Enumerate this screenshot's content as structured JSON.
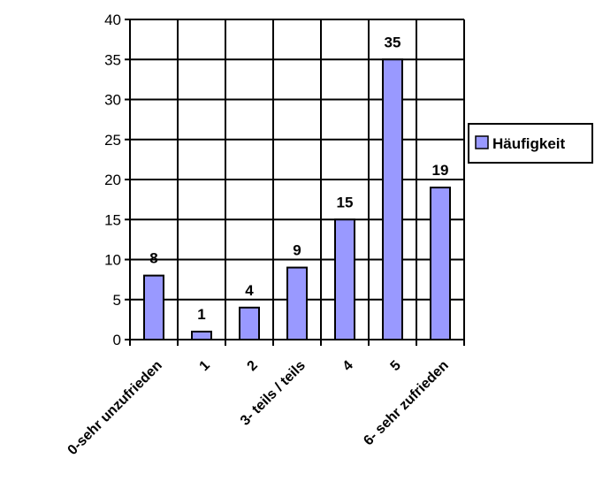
{
  "chart_data": {
    "type": "bar",
    "categories": [
      "0-sehr unzufrieden",
      "1",
      "2",
      "3- teils / teils",
      "4",
      "5",
      "6- sehr zufrieden"
    ],
    "series": [
      {
        "name": "Häufigkeit",
        "values": [
          8,
          1,
          4,
          9,
          15,
          35,
          19
        ],
        "color": "#9999ff"
      }
    ],
    "ylim": [
      0,
      40
    ],
    "yticks": [
      "0",
      "5",
      "10",
      "15",
      "20",
      "25",
      "30",
      "35",
      "40"
    ],
    "grid": true,
    "legend": "right"
  }
}
